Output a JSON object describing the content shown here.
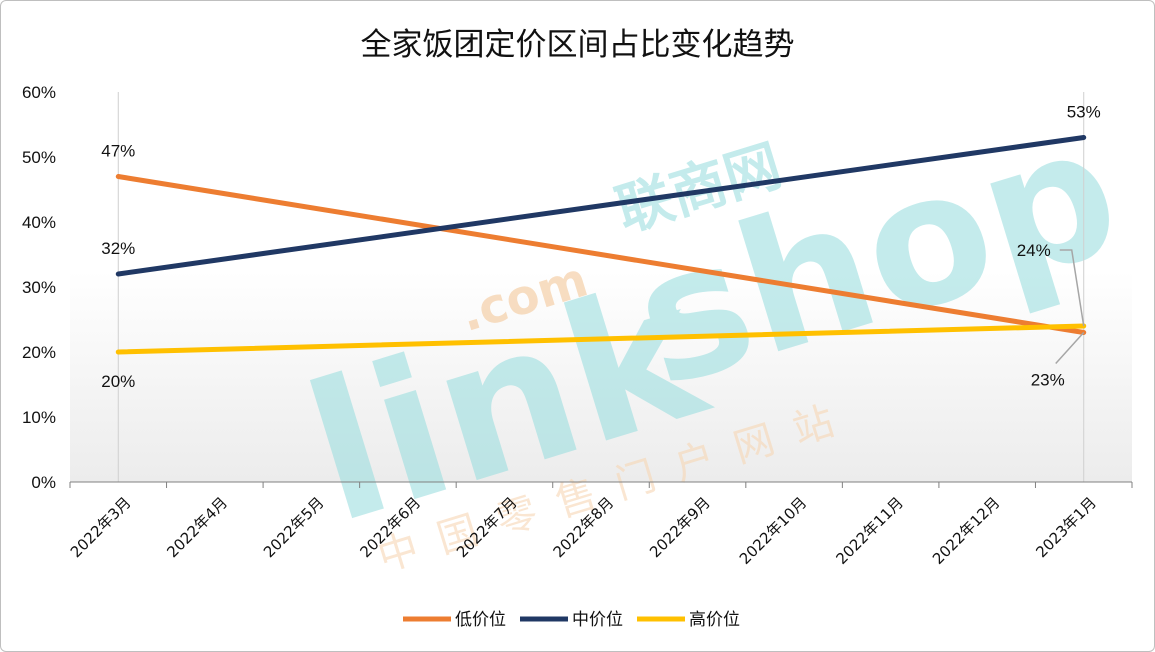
{
  "chart_data": {
    "type": "line",
    "title": "全家饭团定价区间占比变化趋势",
    "categories": [
      "2022年3月",
      "2022年4月",
      "2022年5月",
      "2022年6月",
      "2022年7月",
      "2022年8月",
      "2022年9月",
      "2022年10月",
      "2022年11月",
      "2022年12月",
      "2023年1月"
    ],
    "y_ticks": [
      "0%",
      "10%",
      "20%",
      "30%",
      "40%",
      "50%",
      "60%"
    ],
    "ylim": [
      0,
      60
    ],
    "series": [
      {
        "name": "低价位",
        "color": "#ED7D31",
        "start": 47,
        "end": 23,
        "start_label": "47%",
        "end_label": "23%"
      },
      {
        "name": "中价位",
        "color": "#203864",
        "start": 32,
        "end": 53,
        "start_label": "32%",
        "end_label": "53%"
      },
      {
        "name": "高价位",
        "color": "#FFC000",
        "start": 20,
        "end": 24,
        "start_label": "20%",
        "end_label": "24%"
      }
    ],
    "legend_position": "bottom",
    "grid": false
  },
  "watermark": {
    "brand": "linkshop",
    "domain": ".com",
    "cn_name": "联商网",
    "tagline": "中国零售门户网站"
  }
}
